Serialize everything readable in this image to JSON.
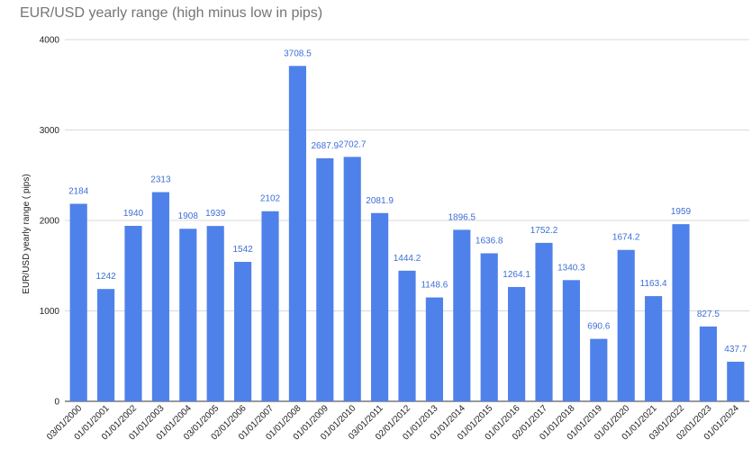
{
  "chart_data": {
    "type": "bar",
    "title": "EUR/USD yearly range (high minus low in pips)",
    "xlabel": "",
    "ylabel": "EUR/USD yearly range ( pips)",
    "ylim": [
      0,
      4000
    ],
    "yticks": [
      0,
      1000,
      2000,
      3000,
      4000
    ],
    "grid": true,
    "bar_color": "#4f81ea",
    "label_color": "#3d6fd6",
    "categories": [
      "03/01/2000",
      "01/01/2001",
      "01/01/2002",
      "01/01/2003",
      "01/01/2004",
      "03/01/2005",
      "02/01/2006",
      "01/01/2007",
      "01/01/2008",
      "01/01/2009",
      "01/01/2010",
      "03/01/2011",
      "02/01/2012",
      "01/01/2013",
      "01/01/2014",
      "01/01/2015",
      "01/01/2016",
      "02/01/2017",
      "01/01/2018",
      "01/01/2019",
      "01/01/2020",
      "01/01/2021",
      "03/01/2022",
      "02/01/2023",
      "01/01/2024"
    ],
    "values": [
      2184,
      1242,
      1940,
      2313,
      1908,
      1939,
      1542,
      2102,
      3708.5,
      2687.9,
      2702.7,
      2081.9,
      1444.2,
      1148.6,
      1896.5,
      1636.8,
      1264.1,
      1752.2,
      1340.3,
      690.6,
      1674.2,
      1163.4,
      1959,
      827.5,
      437.7
    ]
  }
}
